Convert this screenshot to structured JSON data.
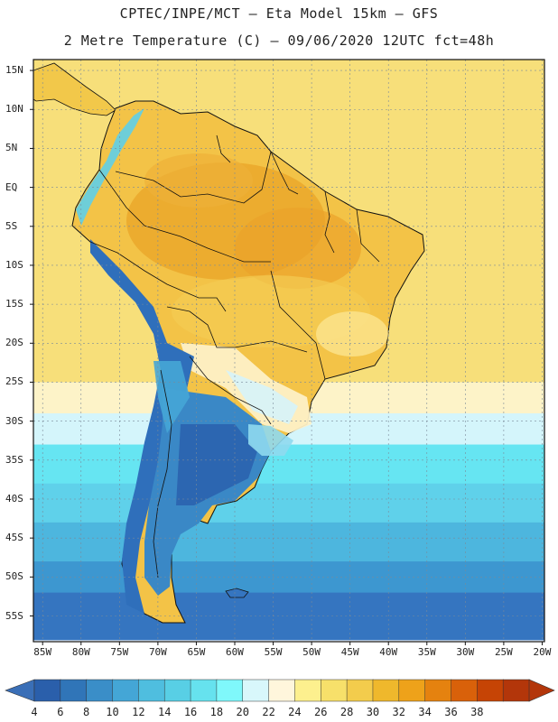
{
  "header": {
    "line1": "CPTEC/INPE/MCT –  Eta Model 15km – GFS",
    "line2": "2 Metre Temperature (C) – 09/06/2020 12UTC fct=48h"
  },
  "map": {
    "lat_labels": [
      "15N",
      "10N",
      "5N",
      "EQ",
      "5S",
      "10S",
      "15S",
      "20S",
      "25S",
      "30S",
      "35S",
      "40S",
      "45S",
      "50S",
      "55S"
    ],
    "lon_labels": [
      "85W",
      "80W",
      "75W",
      "70W",
      "65W",
      "60W",
      "55W",
      "50W",
      "45W",
      "40W",
      "35W",
      "30W",
      "25W",
      "20W"
    ],
    "ocean_bands": [
      {
        "lat": 15,
        "color": "#f7df7a"
      },
      {
        "lat": -25,
        "color": "#fdf3c8"
      },
      {
        "lat": -29,
        "color": "#d4f5fb"
      },
      {
        "lat": -33,
        "color": "#66e5f2"
      },
      {
        "lat": -38,
        "color": "#5fd1ea"
      },
      {
        "lat": -43,
        "color": "#4db6de"
      },
      {
        "lat": -48,
        "color": "#3d97d0"
      },
      {
        "lat": -52,
        "color": "#3575c0"
      },
      {
        "lat": -58,
        "color": "#3575c0"
      }
    ]
  },
  "colorbar": {
    "labels": [
      "4",
      "6",
      "8",
      "10",
      "12",
      "14",
      "16",
      "18",
      "20",
      "22",
      "24",
      "26",
      "28",
      "30",
      "32",
      "34",
      "36",
      "38"
    ],
    "colors": [
      "#2a5fab",
      "#3075b8",
      "#3a8ec8",
      "#44a6d6",
      "#4fbedf",
      "#58cfe5",
      "#66e2ee",
      "#7ff8fb",
      "#d8f7fb",
      "#fff6dc",
      "#fdf08e",
      "#f7e06a",
      "#f3cc4c",
      "#efb82c",
      "#eea21a",
      "#e5820f",
      "#d9610a",
      "#c64405",
      "#b3360a"
    ]
  }
}
